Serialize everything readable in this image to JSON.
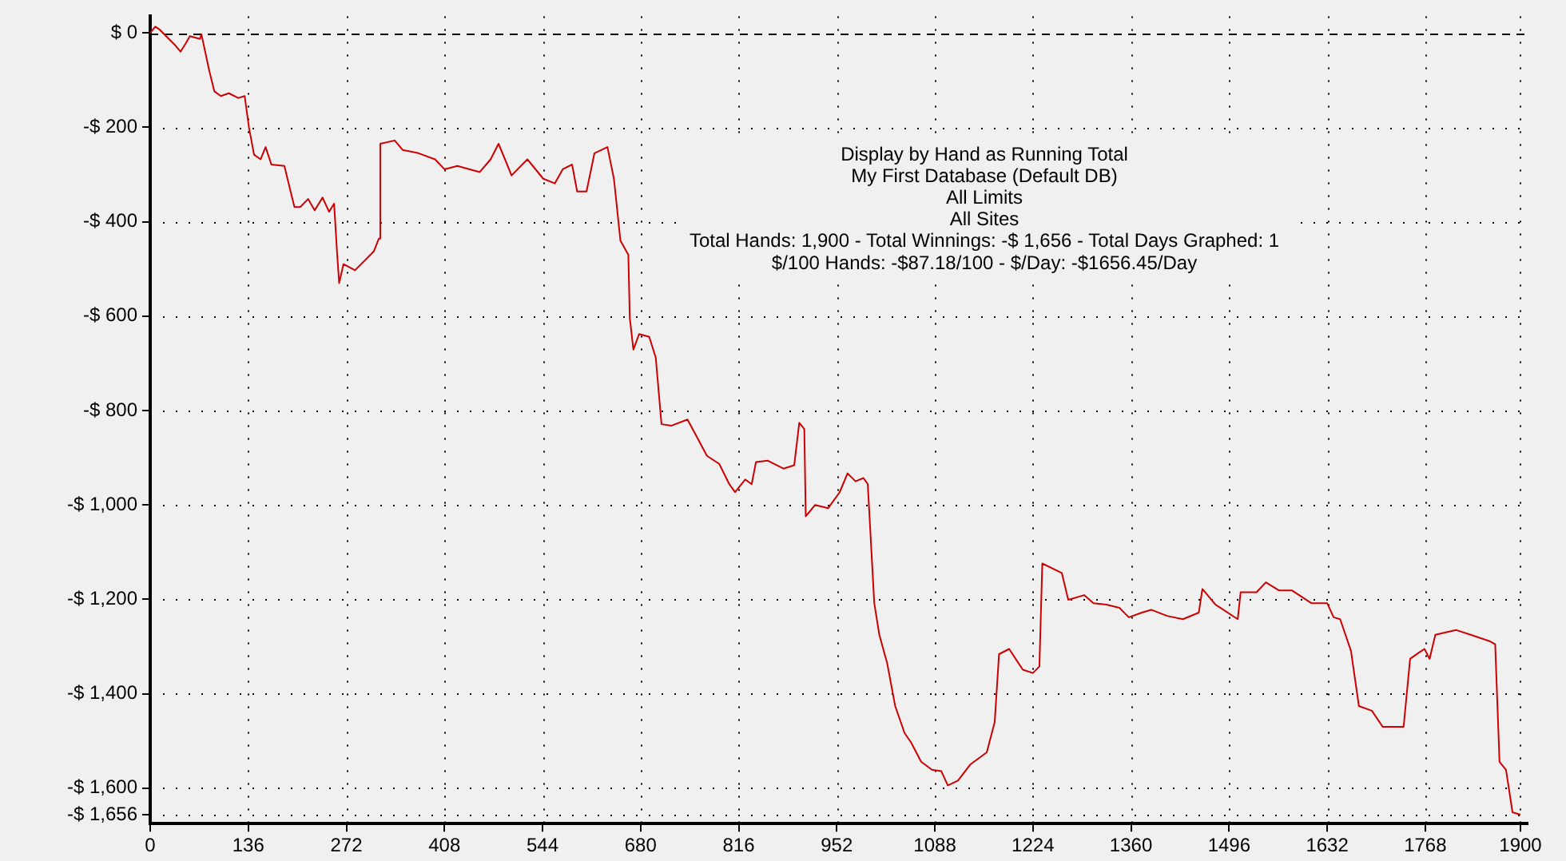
{
  "chart_data": {
    "type": "line",
    "color": "#cc0000",
    "grid": true,
    "legend": false,
    "marker": "none",
    "line_style": "solid",
    "annotations": [
      "Display by Hand as Running Total",
      "My First Database (Default DB)",
      "All Limits",
      "All Sites",
      "Total Hands: 1,900 - Total Winnings: -$ 1,656 - Total Days Graphed: 1",
      "$/100 Hands: -$87.18/100 - $/Day: -$1656.45/Day"
    ],
    "xlim": [
      0,
      1910
    ],
    "ylim": [
      -1675,
      35
    ],
    "xticks": [
      0,
      136,
      272,
      408,
      544,
      680,
      816,
      952,
      1088,
      1224,
      1360,
      1496,
      1632,
      1768,
      1900
    ],
    "yticks": [
      {
        "value": 0,
        "label": "$ 0"
      },
      {
        "value": -200,
        "label": "-$ 200"
      },
      {
        "value": -400,
        "label": "-$ 400"
      },
      {
        "value": -600,
        "label": "-$ 600"
      },
      {
        "value": -800,
        "label": "-$ 800"
      },
      {
        "value": -1000,
        "label": "-$ 1,000"
      },
      {
        "value": -1200,
        "label": "-$ 1,200"
      },
      {
        "value": -1400,
        "label": "-$ 1,400"
      },
      {
        "value": -1600,
        "label": "-$ 1,600"
      },
      {
        "value": -1656,
        "label": "-$ 1,656"
      }
    ],
    "x": [
      0,
      7,
      13,
      22,
      35,
      42,
      49,
      55,
      69,
      71,
      82,
      89,
      98,
      109,
      122,
      131,
      137,
      144,
      153,
      160,
      168,
      186,
      200,
      208,
      219,
      228,
      239,
      248,
      255,
      259,
      262,
      268,
      284,
      310,
      317,
      319,
      339,
      350,
      372,
      395,
      408,
      426,
      457,
      472,
      483,
      492,
      501,
      523,
      545,
      561,
      572,
      585,
      592,
      605,
      616,
      634,
      643,
      652,
      663,
      665,
      670,
      678,
      692,
      701,
      709,
      723,
      745,
      758,
      772,
      789,
      803,
      811,
      825,
      834,
      840,
      856,
      878,
      893,
      900,
      907,
      909,
      922,
      940,
      956,
      967,
      978,
      989,
      995,
      1004,
      1011,
      1022,
      1033,
      1046,
      1055,
      1069,
      1084,
      1097,
      1106,
      1120,
      1137,
      1160,
      1171,
      1177,
      1191,
      1210,
      1224,
      1233,
      1237,
      1264,
      1273,
      1295,
      1308,
      1326,
      1344,
      1357,
      1375,
      1388,
      1410,
      1432,
      1454,
      1459,
      1477,
      1508,
      1512,
      1534,
      1547,
      1565,
      1583,
      1610,
      1632,
      1641,
      1650,
      1665,
      1676,
      1694,
      1709,
      1738,
      1747,
      1760,
      1767,
      1774,
      1782,
      1811,
      1831,
      1858,
      1865,
      1871,
      1880,
      1889,
      1900
    ],
    "values": [
      0,
      13,
      7,
      -7,
      -27,
      -40,
      -23,
      -7,
      -13,
      -3,
      -81,
      -124,
      -134,
      -128,
      -138,
      -134,
      -201,
      -258,
      -268,
      -242,
      -279,
      -282,
      -369,
      -369,
      -352,
      -376,
      -349,
      -379,
      -362,
      -463,
      -530,
      -490,
      -503,
      -463,
      -436,
      -235,
      -228,
      -248,
      -255,
      -268,
      -289,
      -282,
      -295,
      -268,
      -235,
      -268,
      -302,
      -268,
      -309,
      -319,
      -289,
      -279,
      -336,
      -336,
      -255,
      -242,
      -309,
      -440,
      -470,
      -604,
      -671,
      -638,
      -644,
      -688,
      -829,
      -832,
      -819,
      -856,
      -896,
      -913,
      -956,
      -973,
      -946,
      -956,
      -909,
      -906,
      -923,
      -916,
      -826,
      -839,
      -1024,
      -1000,
      -1007,
      -973,
      -933,
      -950,
      -943,
      -956,
      -1208,
      -1275,
      -1336,
      -1426,
      -1483,
      -1503,
      -1544,
      -1561,
      -1564,
      -1594,
      -1584,
      -1550,
      -1524,
      -1460,
      -1316,
      -1305,
      -1349,
      -1356,
      -1342,
      -1124,
      -1144,
      -1201,
      -1191,
      -1208,
      -1211,
      -1218,
      -1238,
      -1228,
      -1222,
      -1235,
      -1242,
      -1228,
      -1178,
      -1211,
      -1242,
      -1185,
      -1185,
      -1164,
      -1181,
      -1181,
      -1208,
      -1208,
      -1238,
      -1242,
      -1309,
      -1426,
      -1436,
      -1470,
      -1470,
      -1326,
      -1312,
      -1305,
      -1326,
      -1275,
      -1265,
      -1275,
      -1289,
      -1295,
      -1544,
      -1561,
      -1651,
      -1656
    ]
  }
}
